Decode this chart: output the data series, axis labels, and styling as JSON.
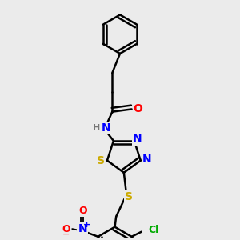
{
  "bg_color": "#ebebeb",
  "bond_color": "#000000",
  "bond_width": 1.8,
  "atom_colors": {
    "N": "#0000ff",
    "O": "#ff0000",
    "S": "#ccaa00",
    "Cl": "#00aa00",
    "H": "#777777",
    "C": "#000000"
  },
  "font_size": 9,
  "fig_size": [
    3.0,
    3.0
  ],
  "dpi": 100
}
